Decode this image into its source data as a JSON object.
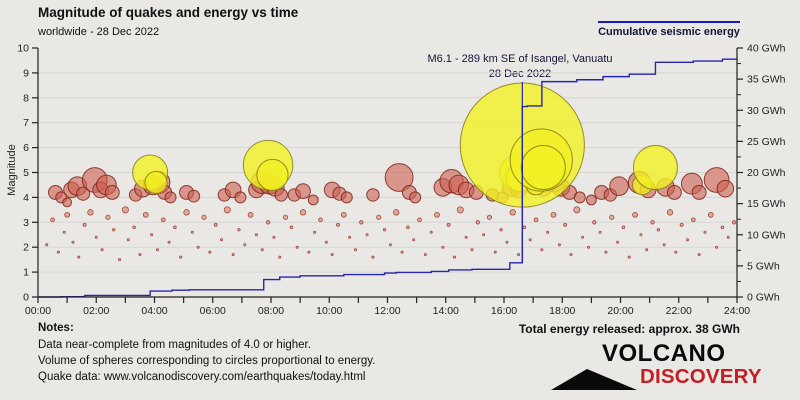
{
  "header": {
    "title": "Magnitude of quakes and energy vs time",
    "subtitle": "worldwide - 28 Dec 2022"
  },
  "legend": {
    "label": "Cumulative seismic energy",
    "line_color": "#1a1ac8"
  },
  "annotation": {
    "line1": "M6.1 - 289 km SE of Isangel, Vanuatu",
    "line2": "28 Dec 2022",
    "hour": 16.63
  },
  "notes": {
    "heading": "Notes:",
    "lines": [
      "Data near-complete from magnitudes of 4.0 or higher.",
      "Volume of spheres corresponding to circles proportional to energy.",
      "Quake data: www.volcanodiscovery.com/earthquakes/today.html"
    ]
  },
  "footer": {
    "total_energy": "Total energy released: approx. 38 GWh",
    "logo": {
      "word1": "VOLCANO",
      "word2": "DISCOVERY",
      "accent_color": "#c41e24"
    }
  },
  "chart_data": {
    "type": "bubble+step-line",
    "title": "Magnitude of quakes and energy vs time",
    "x_axis": {
      "min_hour": 0,
      "max_hour": 24,
      "label_every_hours": 2,
      "tick_every_hours": 1,
      "tick_labels": [
        "00:00",
        "02:00",
        "04:00",
        "06:00",
        "08:00",
        "10:00",
        "12:00",
        "14:00",
        "16:00",
        "18:00",
        "20:00",
        "22:00",
        "24:00"
      ]
    },
    "y_left": {
      "label": "Magnitude",
      "min": 0,
      "max": 10,
      "tick_labels": [
        "0",
        "1",
        "2",
        "3",
        "4",
        "5",
        "6",
        "7",
        "8",
        "9",
        "10"
      ],
      "grid": true
    },
    "y_right": {
      "min": 0,
      "max": 40,
      "tick_step": 5,
      "minor_tick_step": 2.5,
      "tick_labels": [
        "0 GWh",
        "5 GWh",
        "10 GWh",
        "15 GWh",
        "20 GWh",
        "25 GWh",
        "30 GWh",
        "35 GWh",
        "40 GWh"
      ]
    },
    "colors": {
      "red_fill": "rgba(205,95,80,0.60)",
      "red_stroke": "rgba(125,35,25,0.85)",
      "yellow_fill": "rgba(243,240,35,0.80)",
      "yellow_stroke": "rgba(130,125,25,0.85)",
      "minor_fill": "rgba(215,115,95,0.55)",
      "minor_stroke": "rgba(160,60,45,0.9)",
      "energy_line": "#2525b0",
      "axis": "#222",
      "grid": "#d7d6d3"
    },
    "quakes_major": [
      [
        0.6,
        4.2,
        "r"
      ],
      [
        0.8,
        4.0,
        "r"
      ],
      [
        1.0,
        3.8,
        "r"
      ],
      [
        1.15,
        4.3,
        "r"
      ],
      [
        1.35,
        4.45,
        "r"
      ],
      [
        1.55,
        4.15,
        "r"
      ],
      [
        1.95,
        4.7,
        "r"
      ],
      [
        2.15,
        4.3,
        "r"
      ],
      [
        2.35,
        4.5,
        "r"
      ],
      [
        2.55,
        4.2,
        "r"
      ],
      [
        3.35,
        4.1,
        "r"
      ],
      [
        3.6,
        4.35,
        "r"
      ],
      [
        3.95,
        4.5,
        "r"
      ],
      [
        4.15,
        4.6,
        "r"
      ],
      [
        4.35,
        4.2,
        "r"
      ],
      [
        4.55,
        4.0,
        "r"
      ],
      [
        5.1,
        4.2,
        "r"
      ],
      [
        5.35,
        4.05,
        "r"
      ],
      [
        6.4,
        4.1,
        "r"
      ],
      [
        6.7,
        4.3,
        "r"
      ],
      [
        6.95,
        4.0,
        "r"
      ],
      [
        7.5,
        4.3,
        "r"
      ],
      [
        7.7,
        4.6,
        "r"
      ],
      [
        7.95,
        4.55,
        "r"
      ],
      [
        8.15,
        4.4,
        "r"
      ],
      [
        8.35,
        4.1,
        "r"
      ],
      [
        8.8,
        4.1,
        "r"
      ],
      [
        9.1,
        4.25,
        "r"
      ],
      [
        9.45,
        3.9,
        "r"
      ],
      [
        10.1,
        4.3,
        "r"
      ],
      [
        10.35,
        4.15,
        "r"
      ],
      [
        10.6,
        4.0,
        "r"
      ],
      [
        11.5,
        4.1,
        "r"
      ],
      [
        12.4,
        4.8,
        "r"
      ],
      [
        12.75,
        4.2,
        "r"
      ],
      [
        12.95,
        4.0,
        "r"
      ],
      [
        13.9,
        4.4,
        "r"
      ],
      [
        14.2,
        4.65,
        "r"
      ],
      [
        14.45,
        4.5,
        "r"
      ],
      [
        14.7,
        4.3,
        "r"
      ],
      [
        15.05,
        4.2,
        "r"
      ],
      [
        15.6,
        4.1,
        "r"
      ],
      [
        15.95,
        4.0,
        "r"
      ],
      [
        16.25,
        4.4,
        "r"
      ],
      [
        16.5,
        4.3,
        "r"
      ],
      [
        17.05,
        4.5,
        "r"
      ],
      [
        17.35,
        4.4,
        "r"
      ],
      [
        17.7,
        4.75,
        "r"
      ],
      [
        17.95,
        4.4,
        "r"
      ],
      [
        18.25,
        4.2,
        "r"
      ],
      [
        18.6,
        4.0,
        "r"
      ],
      [
        19.0,
        3.9,
        "r"
      ],
      [
        19.35,
        4.2,
        "r"
      ],
      [
        19.65,
        4.1,
        "r"
      ],
      [
        19.95,
        4.45,
        "r"
      ],
      [
        20.65,
        4.6,
        "r"
      ],
      [
        20.95,
        4.3,
        "r"
      ],
      [
        21.55,
        4.4,
        "r"
      ],
      [
        21.85,
        4.2,
        "r"
      ],
      [
        22.45,
        4.55,
        "r"
      ],
      [
        22.7,
        4.2,
        "r"
      ],
      [
        23.3,
        4.7,
        "r"
      ],
      [
        23.6,
        4.35,
        "r"
      ],
      [
        3.85,
        5.0,
        "y"
      ],
      [
        4.05,
        4.6,
        "y"
      ],
      [
        7.9,
        5.3,
        "y"
      ],
      [
        8.05,
        4.9,
        "y"
      ],
      [
        16.45,
        5.0,
        "y"
      ],
      [
        16.55,
        4.8,
        "y"
      ],
      [
        16.63,
        6.1,
        "y"
      ],
      [
        17.1,
        4.5,
        "y"
      ],
      [
        17.28,
        5.5,
        "y"
      ],
      [
        17.35,
        5.2,
        "y"
      ],
      [
        20.75,
        4.5,
        "y"
      ],
      [
        21.2,
        5.2,
        "y"
      ]
    ],
    "quakes_minor": [
      [
        0.3,
        2.1
      ],
      [
        0.5,
        3.1
      ],
      [
        0.7,
        1.8
      ],
      [
        0.9,
        2.6
      ],
      [
        1.0,
        3.3
      ],
      [
        1.2,
        2.2
      ],
      [
        1.4,
        1.6
      ],
      [
        1.6,
        2.9
      ],
      [
        1.8,
        3.4
      ],
      [
        2.0,
        2.4
      ],
      [
        2.2,
        1.9
      ],
      [
        2.4,
        3.2
      ],
      [
        2.6,
        2.7
      ],
      [
        2.8,
        1.5
      ],
      [
        3.0,
        3.5
      ],
      [
        3.1,
        2.3
      ],
      [
        3.3,
        2.8
      ],
      [
        3.5,
        1.7
      ],
      [
        3.7,
        3.3
      ],
      [
        3.9,
        2.5
      ],
      [
        4.1,
        1.9
      ],
      [
        4.3,
        3.1
      ],
      [
        4.5,
        2.2
      ],
      [
        4.7,
        2.8
      ],
      [
        4.9,
        1.6
      ],
      [
        5.1,
        3.4
      ],
      [
        5.3,
        2.6
      ],
      [
        5.5,
        2.0
      ],
      [
        5.7,
        3.2
      ],
      [
        5.9,
        1.8
      ],
      [
        6.1,
        2.9
      ],
      [
        6.3,
        2.3
      ],
      [
        6.5,
        3.5
      ],
      [
        6.7,
        1.7
      ],
      [
        6.9,
        2.7
      ],
      [
        7.1,
        2.1
      ],
      [
        7.3,
        3.3
      ],
      [
        7.5,
        2.5
      ],
      [
        7.7,
        1.9
      ],
      [
        7.9,
        3.0
      ],
      [
        8.1,
        2.4
      ],
      [
        8.3,
        1.6
      ],
      [
        8.5,
        3.2
      ],
      [
        8.7,
        2.8
      ],
      [
        8.9,
        2.0
      ],
      [
        9.1,
        3.4
      ],
      [
        9.3,
        1.8
      ],
      [
        9.5,
        2.6
      ],
      [
        9.7,
        3.1
      ],
      [
        9.9,
        2.2
      ],
      [
        10.1,
        1.7
      ],
      [
        10.3,
        2.9
      ],
      [
        10.5,
        3.3
      ],
      [
        10.7,
        2.4
      ],
      [
        10.9,
        1.9
      ],
      [
        11.1,
        3.0
      ],
      [
        11.3,
        2.5
      ],
      [
        11.5,
        1.6
      ],
      [
        11.7,
        3.2
      ],
      [
        11.9,
        2.7
      ],
      [
        12.1,
        2.1
      ],
      [
        12.3,
        3.4
      ],
      [
        12.5,
        1.8
      ],
      [
        12.7,
        2.8
      ],
      [
        12.9,
        2.3
      ],
      [
        13.1,
        3.1
      ],
      [
        13.3,
        1.7
      ],
      [
        13.5,
        2.6
      ],
      [
        13.7,
        3.3
      ],
      [
        13.9,
        2.0
      ],
      [
        14.1,
        2.9
      ],
      [
        14.3,
        1.6
      ],
      [
        14.5,
        3.5
      ],
      [
        14.7,
        2.4
      ],
      [
        14.9,
        1.9
      ],
      [
        15.1,
        3.0
      ],
      [
        15.3,
        2.5
      ],
      [
        15.5,
        3.2
      ],
      [
        15.7,
        1.8
      ],
      [
        15.9,
        2.7
      ],
      [
        16.1,
        2.2
      ],
      [
        16.3,
        3.4
      ],
      [
        16.5,
        1.7
      ],
      [
        16.7,
        2.8
      ],
      [
        16.9,
        2.3
      ],
      [
        17.1,
        3.1
      ],
      [
        17.3,
        1.9
      ],
      [
        17.5,
        2.6
      ],
      [
        17.7,
        3.3
      ],
      [
        17.9,
        2.1
      ],
      [
        18.1,
        2.9
      ],
      [
        18.3,
        1.7
      ],
      [
        18.5,
        3.5
      ],
      [
        18.7,
        2.4
      ],
      [
        18.9,
        2.0
      ],
      [
        19.1,
        3.0
      ],
      [
        19.3,
        2.6
      ],
      [
        19.5,
        1.8
      ],
      [
        19.7,
        3.2
      ],
      [
        19.9,
        2.2
      ],
      [
        20.1,
        2.8
      ],
      [
        20.3,
        1.6
      ],
      [
        20.5,
        3.3
      ],
      [
        20.7,
        2.5
      ],
      [
        20.9,
        1.9
      ],
      [
        21.1,
        3.0
      ],
      [
        21.3,
        2.7
      ],
      [
        21.5,
        2.1
      ],
      [
        21.7,
        3.4
      ],
      [
        21.9,
        1.8
      ],
      [
        22.1,
        2.9
      ],
      [
        22.3,
        2.3
      ],
      [
        22.5,
        3.1
      ],
      [
        22.7,
        1.7
      ],
      [
        22.9,
        2.6
      ],
      [
        23.1,
        3.3
      ],
      [
        23.3,
        2.0
      ],
      [
        23.5,
        2.8
      ],
      [
        23.7,
        2.4
      ],
      [
        23.9,
        3.0
      ]
    ],
    "energy_line_gwh": [
      [
        0,
        0
      ],
      [
        0.8,
        0.05
      ],
      [
        1.6,
        0.25
      ],
      [
        3.85,
        0.95
      ],
      [
        4.6,
        1.1
      ],
      [
        5.2,
        1.15
      ],
      [
        7.75,
        2.8
      ],
      [
        8.3,
        3.2
      ],
      [
        9.0,
        3.4
      ],
      [
        10.5,
        3.6
      ],
      [
        11.9,
        3.85
      ],
      [
        12.3,
        3.95
      ],
      [
        13.5,
        4.1
      ],
      [
        14.1,
        4.35
      ],
      [
        14.9,
        4.45
      ],
      [
        16.2,
        5.5
      ],
      [
        16.63,
        30.6
      ],
      [
        16.8,
        30.7
      ],
      [
        17.3,
        34.6
      ],
      [
        18.5,
        34.9
      ],
      [
        19.4,
        35.4
      ],
      [
        20.3,
        35.8
      ],
      [
        21.2,
        37.7
      ],
      [
        22.5,
        37.9
      ],
      [
        23.5,
        38.2
      ],
      [
        24,
        38.3
      ]
    ],
    "total_energy_gwh": 38
  }
}
